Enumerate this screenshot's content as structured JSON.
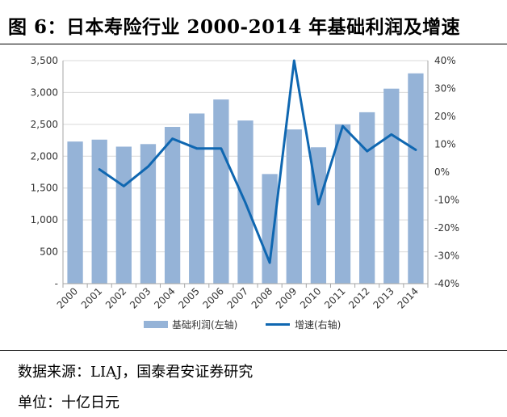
{
  "figure": {
    "title": "图 6：日本寿险行业 2000-2014 年基础利润及增速",
    "source": "数据来源：LIAJ，国泰君安证券研究",
    "unit": "单位：十亿日元"
  },
  "colors": {
    "bar": "#95B3D7",
    "line": "#0F67B1",
    "grid": "#D9D9D9",
    "axis": "#A6A6A6"
  },
  "chart_data": {
    "type": "bar+line",
    "categories": [
      "2000",
      "2001",
      "2002",
      "2003",
      "2004",
      "2005",
      "2006",
      "2007",
      "2008",
      "2009",
      "2010",
      "2011",
      "2012",
      "2013",
      "2014"
    ],
    "series": [
      {
        "name": "基础利润(左轴)",
        "type": "bar",
        "axis": "left",
        "values": [
          2230,
          2260,
          2150,
          2190,
          2460,
          2670,
          2890,
          2560,
          1720,
          2420,
          2140,
          2500,
          2690,
          3060,
          3300
        ]
      },
      {
        "name": "增速(右轴)",
        "type": "line",
        "axis": "right",
        "values": [
          null,
          0.01,
          -0.05,
          0.02,
          0.12,
          0.085,
          0.085,
          -0.11,
          -0.325,
          0.4,
          -0.115,
          0.165,
          0.075,
          0.135,
          0.08
        ]
      }
    ],
    "left_axis": {
      "min": 0,
      "max": 3500,
      "step": 500,
      "tick_labels": [
        "-",
        "500",
        "1,000",
        "1,500",
        "2,000",
        "2,500",
        "3,000",
        "3,500"
      ]
    },
    "right_axis": {
      "min": -0.4,
      "max": 0.4,
      "step": 0.1,
      "tick_labels": [
        "-40%",
        "-30%",
        "-20%",
        "-10%",
        "0%",
        "10%",
        "20%",
        "30%",
        "40%"
      ]
    },
    "grid": true,
    "legend": "bottom"
  }
}
